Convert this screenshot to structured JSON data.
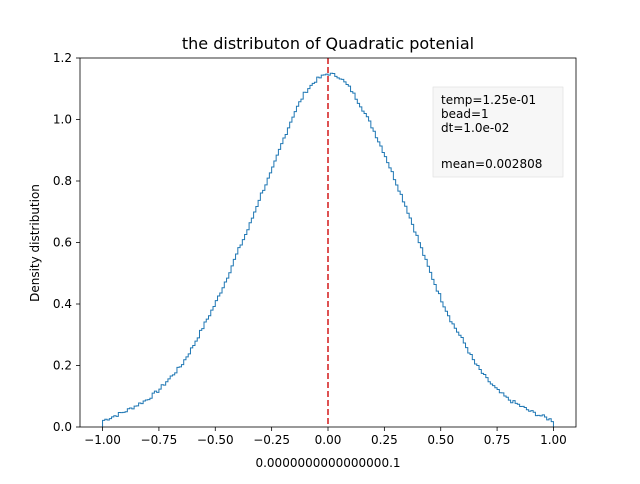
{
  "chart_data": {
    "type": "histogram-step",
    "title": "the distributon of Quadratic potenial",
    "xlabel": "0.0000000000000000.1",
    "ylabel": "Density distribution",
    "xlim": [
      -1.1,
      1.1
    ],
    "ylim": [
      0.0,
      1.2
    ],
    "x_ticks": [
      -1.0,
      -0.75,
      -0.5,
      -0.25,
      0.0,
      0.25,
      0.5,
      0.75,
      1.0
    ],
    "x_tick_labels": [
      "−1.00",
      "−0.75",
      "−0.50",
      "−0.25",
      "0.00",
      "0.25",
      "0.50",
      "0.75",
      "1.00"
    ],
    "y_ticks": [
      0.0,
      0.2,
      0.4,
      0.6,
      0.8,
      1.0,
      1.2
    ],
    "y_tick_labels": [
      "0.0",
      "0.2",
      "0.4",
      "0.6",
      "0.8",
      "1.0",
      "1.2"
    ],
    "grid": false,
    "series": [
      {
        "color": "#1f77b4",
        "x": [
          -1.0,
          -0.9,
          -0.8,
          -0.75,
          -0.7,
          -0.65,
          -0.6,
          -0.55,
          -0.5,
          -0.45,
          -0.4,
          -0.35,
          -0.3,
          -0.25,
          -0.2,
          -0.15,
          -0.1,
          -0.05,
          0.0,
          0.05,
          0.1,
          0.15,
          0.2,
          0.25,
          0.3,
          0.35,
          0.4,
          0.45,
          0.5,
          0.55,
          0.6,
          0.65,
          0.7,
          0.75,
          0.8,
          0.9,
          1.0
        ],
        "y": [
          0.02,
          0.05,
          0.09,
          0.12,
          0.16,
          0.2,
          0.26,
          0.33,
          0.4,
          0.48,
          0.57,
          0.65,
          0.75,
          0.83,
          0.93,
          1.02,
          1.09,
          1.13,
          1.15,
          1.14,
          1.1,
          1.04,
          0.97,
          0.89,
          0.8,
          0.71,
          0.61,
          0.51,
          0.42,
          0.34,
          0.28,
          0.21,
          0.16,
          0.12,
          0.09,
          0.05,
          0.02
        ]
      }
    ],
    "vline": {
      "x": 0.0,
      "color": "#d62728",
      "style": "dashed"
    },
    "annotation": {
      "lines": [
        "temp=1.25e-01",
        "bead=1",
        "dt=1.0e-02",
        "",
        "mean=0.002808"
      ],
      "placement": "top-right"
    }
  }
}
